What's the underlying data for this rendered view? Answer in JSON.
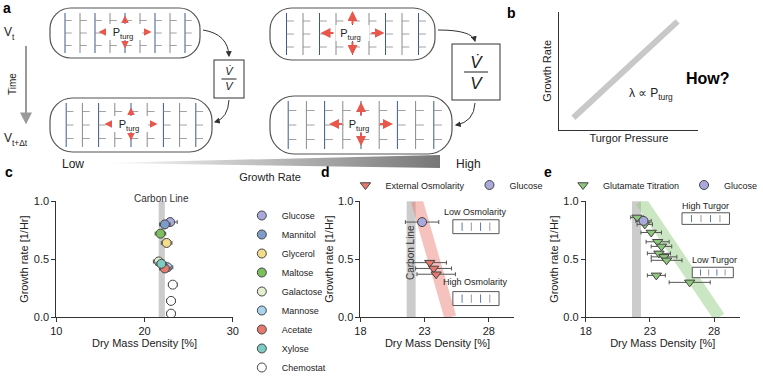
{
  "diagram": {
    "label": "a",
    "time_axis": {
      "label": "Time",
      "start": {
        "base": "V",
        "sub": "t"
      },
      "end": {
        "base": "V",
        "sub": "t+Δt"
      }
    },
    "pressure": {
      "base": "P",
      "sub": "turg"
    },
    "rate": {
      "numerator": "V̇",
      "denominator": "V"
    },
    "growth_scale": {
      "low": "Low",
      "title": "Growth Rate",
      "high": "High"
    }
  },
  "chart_data": [
    {
      "label": "b",
      "type": "line",
      "x_label": "Turgor Pressure",
      "y_label": "Growth Rate",
      "x": [
        0.1,
        0.85
      ],
      "values": [
        0.1,
        0.92
      ],
      "color": "#c8c8c8",
      "xlim": [
        0,
        1
      ],
      "ylim": [
        0,
        1
      ],
      "tick_labels": false,
      "annotations": [
        {
          "text": "λ ∝ P",
          "sub": "turg"
        },
        {
          "text": "How?"
        }
      ]
    },
    {
      "label": "c",
      "type": "scatter",
      "x_label": "Dry Mass Density [%]",
      "y_label": "Growth rate [1/Hr]",
      "xlim": [
        10,
        30
      ],
      "xticks": [
        10,
        20,
        30
      ],
      "ylim": [
        0,
        1
      ],
      "yticks": [
        {
          "value": 0,
          "label": "0.0"
        },
        {
          "value": 0.5,
          "label": "0.5"
        },
        {
          "value": 1,
          "label": "1.0"
        }
      ],
      "band": {
        "text": "Carbon Line",
        "x": [
          21.6,
          22.3
        ],
        "color": "#cccccc"
      },
      "series": [
        {
          "name": "Glucose",
          "color": "#a9a9dc",
          "marker": "circle",
          "x": [
            22.9
          ],
          "values": [
            0.82
          ],
          "x_error": [
            0.8
          ]
        },
        {
          "name": "Mannitol",
          "color": "#7d9cc9",
          "marker": "circle",
          "x": [
            22.3
          ],
          "values": [
            0.8
          ],
          "x_error": [
            0.6
          ]
        },
        {
          "name": "Glycerol",
          "color": "#f3dc8a",
          "marker": "circle",
          "x": [
            22.5
          ],
          "values": [
            0.64
          ],
          "x_error": [
            0.6
          ]
        },
        {
          "name": "Maltose",
          "color": "#7dbf5c",
          "marker": "circle",
          "x": [
            21.8
          ],
          "values": [
            0.72
          ],
          "x_error": [
            0.6
          ]
        },
        {
          "name": "Galactose",
          "color": "#e3efcf",
          "marker": "circle",
          "x": [
            21.6
          ],
          "values": [
            0.48
          ],
          "x_error": [
            0.6
          ]
        },
        {
          "name": "Mannose",
          "color": "#a9d3ee",
          "marker": "circle",
          "x": [
            22.6
          ],
          "values": [
            0.43
          ],
          "x_error": [
            0.6
          ]
        },
        {
          "name": "Acetate",
          "color": "#e77a6e",
          "marker": "circle",
          "x": [
            22.3
          ],
          "values": [
            0.42
          ],
          "x_error": [
            0.6
          ]
        },
        {
          "name": "Xylose",
          "color": "#7fcbc2",
          "marker": "circle",
          "x": [
            21.9
          ],
          "values": [
            0.46
          ],
          "x_error": [
            0.6
          ]
        },
        {
          "name": "Chemostat",
          "color": "#ffffff",
          "marker": "circle",
          "x": [
            23.2,
            23.0,
            23.0
          ],
          "values": [
            0.28,
            0.14,
            0.03
          ],
          "x_error": [
            0.5,
            0.5,
            0.5
          ]
        }
      ]
    },
    {
      "label": "d",
      "type": "scatter",
      "x_label": "Dry Mass Density [%]",
      "y_label": "Growth rate [1/Hr]",
      "xlim": [
        18,
        30
      ],
      "xticks": [
        18,
        23,
        28
      ],
      "ylim": [
        0,
        1
      ],
      "yticks": [
        {
          "value": 0,
          "label": "0.0"
        },
        {
          "value": 0.5,
          "label": "0.5"
        },
        {
          "value": 1,
          "label": "1.0"
        }
      ],
      "band": {
        "text": "Carbon Line",
        "x": [
          21.6,
          22.3
        ],
        "color": "#cccccc"
      },
      "trend": {
        "x": [
          22.4,
          25.0
        ],
        "values": [
          1.0,
          0.0
        ],
        "color": "#e8786e"
      },
      "insets": [
        "Low Osmolarity",
        "High Osmolarity"
      ],
      "series": [
        {
          "name": "External Osmolarity",
          "color": "#e8786e",
          "marker": "triangle-down",
          "x": [
            23.4,
            23.7,
            23.9
          ],
          "values": [
            0.47,
            0.42,
            0.37
          ],
          "x_error": [
            1.3,
            1.4,
            1.5
          ]
        },
        {
          "name": "Glucose",
          "color": "#a9a9dc",
          "marker": "circle",
          "x": [
            22.8
          ],
          "values": [
            0.82
          ],
          "x_error": [
            1.3
          ]
        }
      ]
    },
    {
      "label": "e",
      "type": "scatter",
      "x_label": "Dry Mass Density [%]",
      "y_label": "Growth rate [1/Hr]",
      "xlim": [
        18,
        30
      ],
      "xticks": [
        18,
        23,
        28
      ],
      "ylim": [
        0,
        1
      ],
      "yticks": [
        {
          "value": 0,
          "label": "0.0"
        },
        {
          "value": 0.5,
          "label": "0.5"
        },
        {
          "value": 1,
          "label": "1.0"
        }
      ],
      "band": {
        "x": [
          21.6,
          22.3
        ],
        "color": "#cccccc"
      },
      "trend": {
        "x": [
          22.3,
          28.4
        ],
        "values": [
          1.0,
          0.0
        ],
        "color": "#8cc77a"
      },
      "insets": [
        "High Turgor",
        "Low Turgor"
      ],
      "series": [
        {
          "name": "Glutamate Titration",
          "color": "#8cc77a",
          "marker": "triangle-down",
          "x": [
            22.0,
            22.6,
            23.1,
            23.6,
            23.9,
            23.7,
            24.1,
            24.3,
            23.5,
            26.1
          ],
          "values": [
            0.86,
            0.8,
            0.73,
            0.65,
            0.61,
            0.55,
            0.52,
            0.49,
            0.36,
            0.3
          ],
          "x_error": [
            0.5,
            0.6,
            0.8,
            0.9,
            0.8,
            0.9,
            1.0,
            1.2,
            0.7,
            1.6
          ]
        },
        {
          "name": "Glucose",
          "color": "#a9a9dc",
          "marker": "circle",
          "x": [
            22.5
          ],
          "values": [
            0.83
          ],
          "x_error": [
            0.6
          ]
        }
      ]
    }
  ]
}
